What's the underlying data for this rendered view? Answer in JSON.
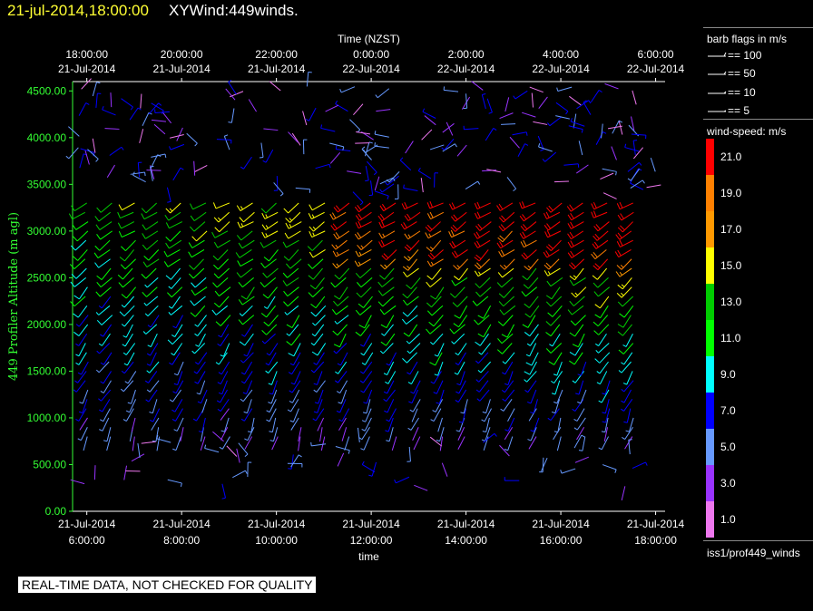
{
  "header": {
    "date_label": "21-jul-2014,18:00:00",
    "title": "XYWind:449winds."
  },
  "chart_data": {
    "type": "wind-barb",
    "top_axis_label": "Time (NZST)",
    "top_ticks": [
      {
        "time": "18:00:00",
        "date": "21-Jul-2014"
      },
      {
        "time": "20:00:00",
        "date": "21-Jul-2014"
      },
      {
        "time": "22:00:00",
        "date": "21-Jul-2014"
      },
      {
        "time": "0:00:00",
        "date": "22-Jul-2014"
      },
      {
        "time": "2:00:00",
        "date": "22-Jul-2014"
      },
      {
        "time": "4:00:00",
        "date": "22-Jul-2014"
      },
      {
        "time": "6:00:00",
        "date": "22-Jul-2014"
      }
    ],
    "bottom_axis_label": "time",
    "bottom_ticks": [
      {
        "date": "21-Jul-2014",
        "time": "6:00:00"
      },
      {
        "date": "21-Jul-2014",
        "time": "8:00:00"
      },
      {
        "date": "21-Jul-2014",
        "time": "10:00:00"
      },
      {
        "date": "21-Jul-2014",
        "time": "12:00:00"
      },
      {
        "date": "21-Jul-2014",
        "time": "14:00:00"
      },
      {
        "date": "21-Jul-2014",
        "time": "16:00:00"
      },
      {
        "date": "21-Jul-2014",
        "time": "18:00:00"
      }
    ],
    "x_range_hours_utc": [
      5.7,
      18.2
    ],
    "ylabel": "449 Profiler Altitude (m agl)",
    "ylim": [
      0,
      4600
    ],
    "y_ticks": [
      "0.00",
      "500.00",
      "1000.00",
      "1500.00",
      "2000.00",
      "2500.00",
      "3000.00",
      "3500.00",
      "4000.00",
      "4500.00"
    ],
    "y_tick_values": [
      0,
      500,
      1000,
      1500,
      2000,
      2500,
      3000,
      3500,
      4000,
      4500
    ],
    "profile_times_utc_hours": [
      6,
      6.5,
      7,
      7.5,
      8,
      8.5,
      9,
      9.5,
      10,
      10.5,
      11,
      11.5,
      12,
      12.5,
      13,
      13.5,
      14,
      14.5,
      15,
      15.5,
      16,
      16.5,
      17,
      17.5
    ],
    "gate_altitudes_m": [
      800,
      900,
      1000,
      1100,
      1200,
      1300,
      1400,
      1500,
      1600,
      1700,
      1800,
      1900,
      2000,
      2100,
      2200,
      2300,
      2400,
      2500,
      2600,
      2700,
      2800,
      2900,
      3000,
      3100,
      3200,
      3300
    ],
    "wind_speed_scale_ms": [
      1.0,
      3.0,
      5.0,
      7.0,
      9.0,
      11.0,
      13.0,
      15.0,
      17.0,
      19.0,
      21.0
    ],
    "grid": false
  },
  "legend": {
    "barb_title": "barb flags in m/s",
    "barb_flags": [
      "== 100",
      "== 50",
      "== 10",
      "== 5"
    ],
    "speed_title": "wind-speed: m/s",
    "speed_labels": [
      "21.0",
      "19.0",
      "17.0",
      "15.0",
      "13.0",
      "11.0",
      "9.0",
      "7.0",
      "5.0",
      "3.0",
      "1.0"
    ],
    "speed_colors": [
      "#ff0000",
      "#ff8000",
      "#ff9900",
      "#ffff00",
      "#00cc00",
      "#00ff00",
      "#00ffff",
      "#0000ff",
      "#6699ff",
      "#9933ff",
      "#ee77ee"
    ]
  },
  "footer": {
    "source_id": "iss1/prof449_winds",
    "quality_note": "REAL-TIME DATA, NOT CHECKED FOR QUALITY"
  }
}
